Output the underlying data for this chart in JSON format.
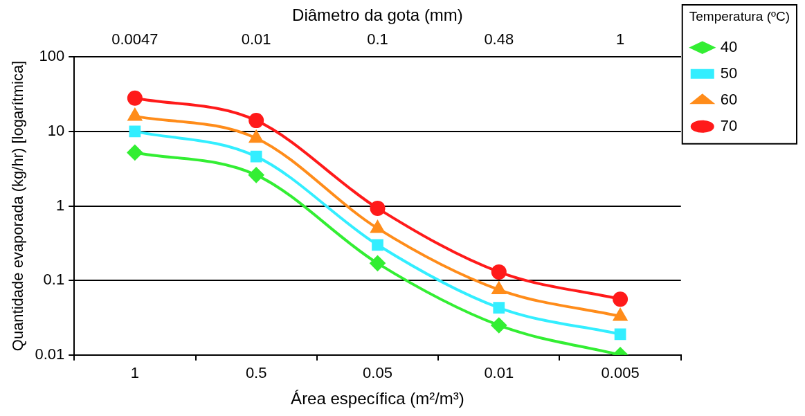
{
  "chart_data": {
    "type": "line",
    "xlabel": "Área específica (m²/m³)",
    "ylabel": "Quantidade evaporada (kg/hr) [logarítmica]",
    "x2label": "Diâmetro da gota (mm)",
    "legend_title": "Temperatura (ºC)",
    "categories": [
      "1",
      "0.5",
      "0.05",
      "0.01",
      "0.005"
    ],
    "annotations": [
      "0.0047",
      "0.01",
      "0.1",
      "0.48",
      "1"
    ],
    "log": "y",
    "ylim": [
      0.01,
      100
    ],
    "yticks": [
      0.01,
      0.1,
      1,
      10,
      100
    ],
    "grid": "y",
    "legend": "top right",
    "series": [
      {
        "name": "40",
        "color": "#33ee33",
        "marker": "diamond",
        "values": [
          5.2,
          2.6,
          0.17,
          0.025,
          0.01
        ]
      },
      {
        "name": "50",
        "color": "#33eeff",
        "marker": "square",
        "values": [
          10,
          4.6,
          0.3,
          0.043,
          0.019
        ]
      },
      {
        "name": "60",
        "color": "#ff8c1a",
        "marker": "triangle",
        "values": [
          16,
          8.1,
          0.5,
          0.075,
          0.033
        ]
      },
      {
        "name": "70",
        "color": "#ff1a1a",
        "marker": "circle",
        "values": [
          28,
          14,
          0.93,
          0.13,
          0.056
        ]
      }
    ]
  }
}
